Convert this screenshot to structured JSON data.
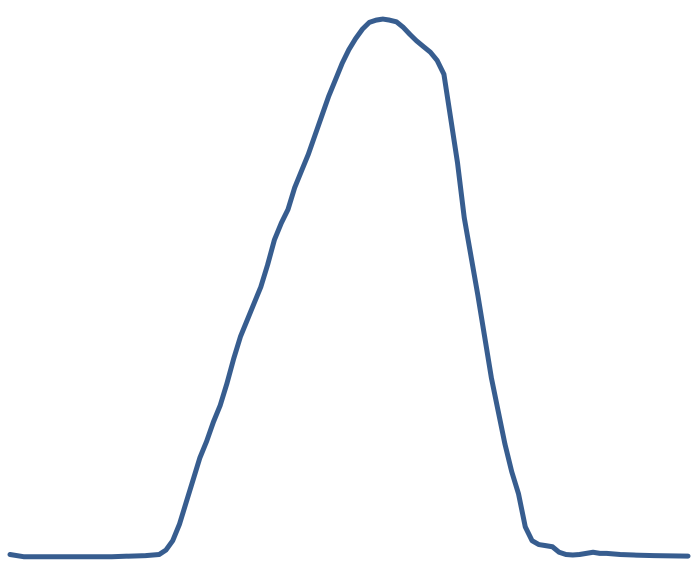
{
  "chart_data": {
    "type": "line",
    "title": "",
    "xlabel": "",
    "ylabel": "",
    "grid": false,
    "legend": "none",
    "xlim": [
      0,
      100
    ],
    "ylim": [
      0,
      100
    ],
    "series": [
      {
        "color": "#375d8f",
        "x": [
          0,
          2,
          5,
          10,
          15,
          20,
          22,
          23,
          24,
          25,
          26,
          27,
          28,
          29,
          30,
          31,
          32,
          33,
          34,
          35,
          36,
          37,
          38,
          39,
          40,
          41,
          42,
          43,
          44,
          45,
          46,
          47,
          48,
          49,
          50,
          51,
          52,
          53,
          54,
          55,
          56,
          57,
          58,
          59,
          60,
          61,
          62,
          63,
          64,
          65,
          66,
          67,
          68,
          69,
          70,
          71,
          72,
          73,
          74,
          75,
          76,
          77,
          78,
          79,
          80,
          81,
          82,
          83,
          84,
          85,
          86,
          87,
          88,
          90,
          92,
          95,
          100
        ],
        "y": [
          1.0,
          0.6,
          0.6,
          0.6,
          0.6,
          0.8,
          1.0,
          1.8,
          3.5,
          6.5,
          10.5,
          14.5,
          18.5,
          21.5,
          25.0,
          28.0,
          32.0,
          36.5,
          40.5,
          43.5,
          46.5,
          49.5,
          53.5,
          58.0,
          61.0,
          63.5,
          67.5,
          70.5,
          73.5,
          77.0,
          80.5,
          84.0,
          87.0,
          90.0,
          92.5,
          94.5,
          96.2,
          97.4,
          97.8,
          98.0,
          97.8,
          97.5,
          96.5,
          95.2,
          94.0,
          93.0,
          92.0,
          90.5,
          88.0,
          80.0,
          72.0,
          62.0,
          55.0,
          48.0,
          40.5,
          33.0,
          27.0,
          21.0,
          16.0,
          12.0,
          6.0,
          3.5,
          2.8,
          2.6,
          2.4,
          1.4,
          1.0,
          0.9,
          1.0,
          1.2,
          1.4,
          1.2,
          1.2,
          1.0,
          0.9,
          0.8,
          0.7
        ]
      }
    ]
  }
}
